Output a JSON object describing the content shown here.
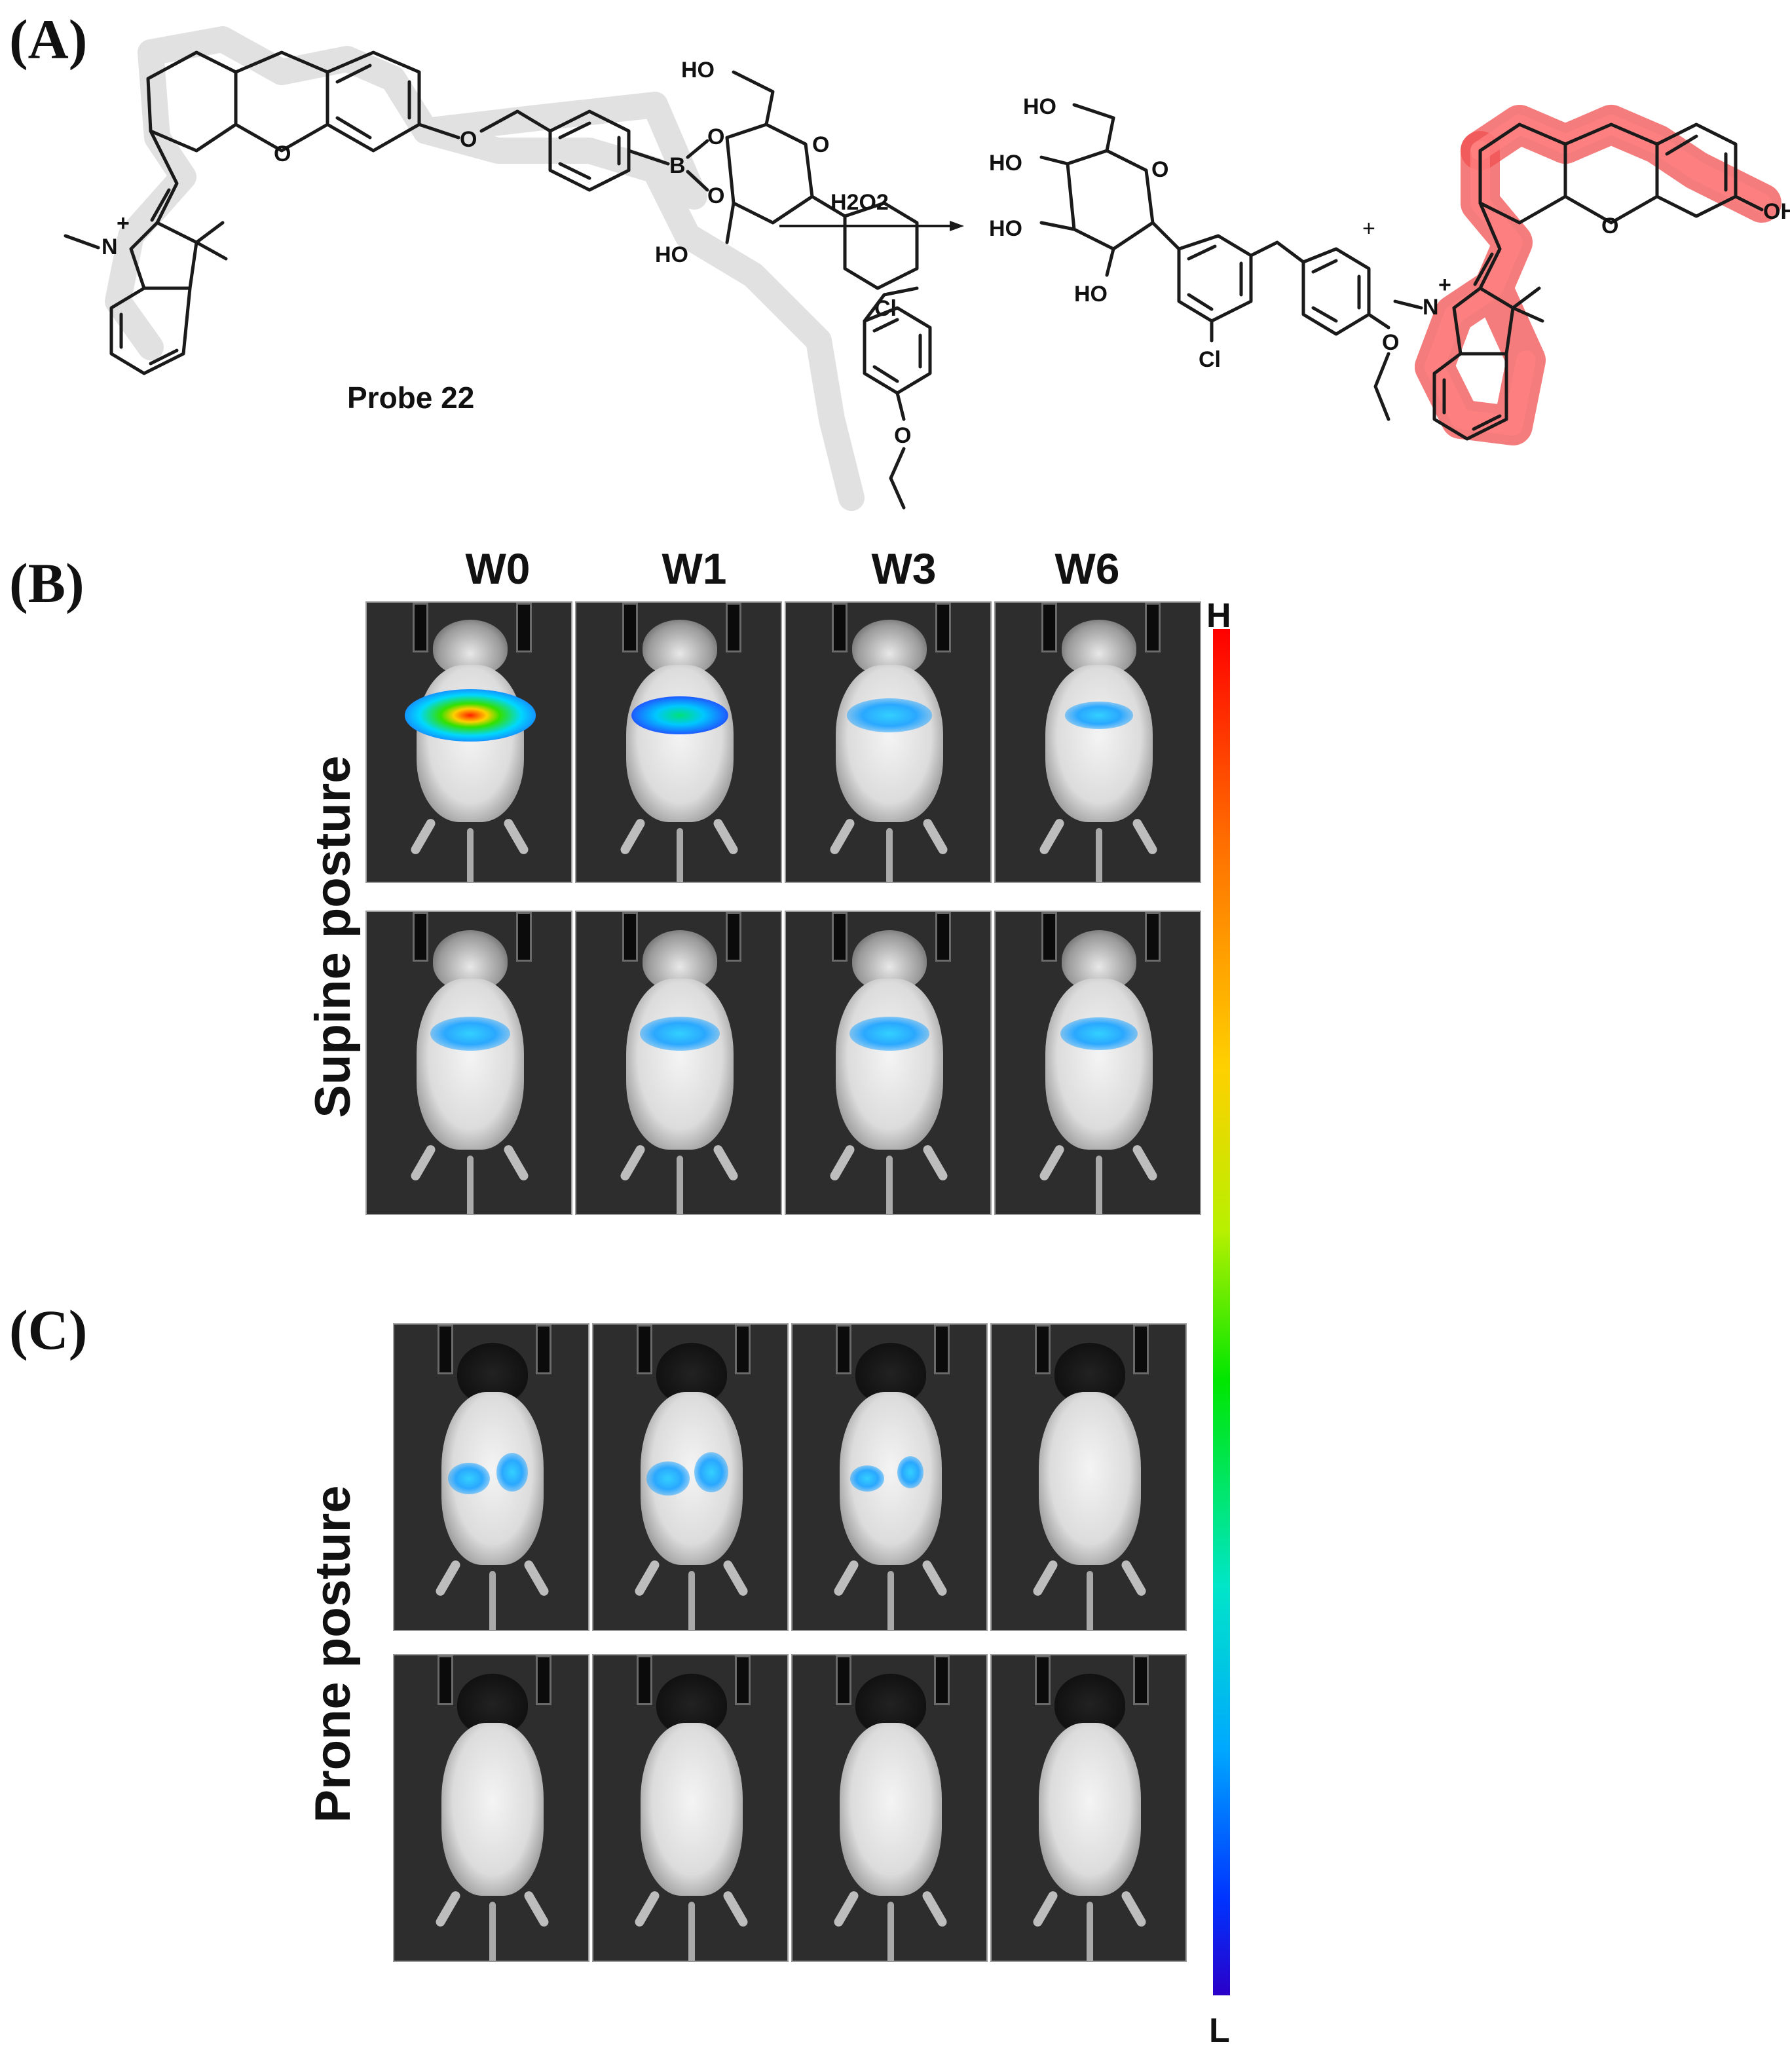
{
  "panels": {
    "a": "(A)",
    "b": "(B)",
    "c": "(C)"
  },
  "scheme": {
    "probe_name": "Probe 22",
    "reagent": "H2O2",
    "plus": "+",
    "atoms": {
      "oxygen": "O",
      "nitrogen": "N",
      "boron": "B",
      "chlorine": "Cl",
      "hydroxyl": "OH",
      "hydroxyl_left": "HO",
      "charge": "+"
    }
  },
  "imaging": {
    "columns": [
      "W0",
      "W1",
      "W3",
      "W6"
    ],
    "supine_label": "Supine  posture",
    "prone_label": "Prone posture",
    "colorbar_high": "H",
    "colorbar_low": "L",
    "supine_signal_level": [
      0.75,
      0.45,
      0.35,
      0.2
    ],
    "supine_row2_signal_level": [
      0.3,
      0.3,
      0.3,
      0.28
    ],
    "prone_signal_level": [
      0.3,
      0.35,
      0.15,
      0.0
    ],
    "prone_row2_signal_level": [
      0.0,
      0.0,
      0.0,
      0.0
    ]
  }
}
